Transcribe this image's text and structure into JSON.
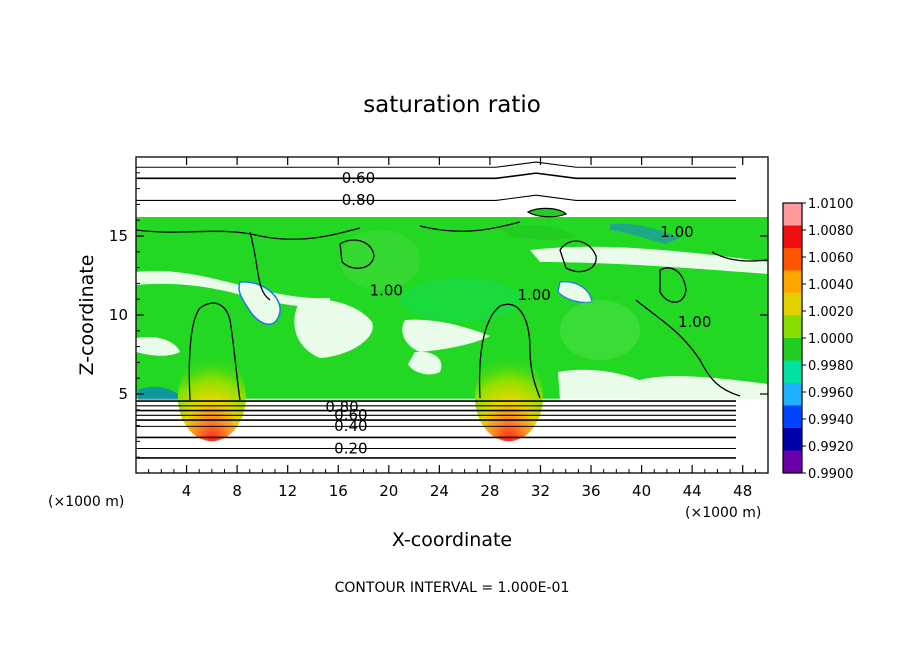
{
  "chart_data": {
    "type": "heatmap",
    "title": "saturation ratio",
    "xlabel": "X-coordinate",
    "ylabel": "Z-coordinate",
    "x_unit": "(×1000 m)",
    "z_unit": "(×1000 m)",
    "xlim": [
      0,
      50
    ],
    "ylim": [
      0,
      20
    ],
    "x_ticks": [
      4,
      8,
      12,
      16,
      20,
      24,
      28,
      32,
      36,
      40,
      44,
      48
    ],
    "y_ticks": [
      5,
      10,
      15
    ],
    "colorbar": {
      "ticks": [
        "1.0100",
        "1.0080",
        "1.0060",
        "1.0040",
        "1.0020",
        "1.0000",
        "0.9980",
        "0.9960",
        "0.9940",
        "0.9920",
        "0.9900"
      ],
      "colors": [
        "#ff9a9a",
        "#ee1010",
        "#ff5500",
        "#ffa500",
        "#e0d000",
        "#88dd00",
        "#22cc22",
        "#00e0a0",
        "#20b0ff",
        "#0044ff",
        "#0000aa",
        "#6a00a8"
      ]
    },
    "field_region": {
      "x_range": [
        0,
        50
      ],
      "z_range": [
        4.7,
        16.2
      ],
      "background_value": "1.0000",
      "background_color": "#22d822",
      "warm_spots": [
        {
          "x": 6.0,
          "z": 4.8,
          "color_peak": "#ee1010"
        },
        {
          "x": 29.5,
          "z": 4.8,
          "color_peak": "#ee1010"
        }
      ]
    },
    "contour_labels": [
      {
        "text": "0.60",
        "x": 17.6,
        "z": 18.6
      },
      {
        "text": "0.80",
        "x": 17.6,
        "z": 17.2
      },
      {
        "text": "1.00",
        "x": 42.8,
        "z": 15.2
      },
      {
        "text": "1.00",
        "x": 19.8,
        "z": 11.5
      },
      {
        "text": "1.00",
        "x": 31.5,
        "z": 11.2
      },
      {
        "text": "1.00",
        "x": 44.2,
        "z": 9.5
      },
      {
        "text": "0.80",
        "x": 16.3,
        "z": 4.1
      },
      {
        "text": "0.60",
        "x": 17.0,
        "z": 3.6
      },
      {
        "text": "0.40",
        "x": 17.0,
        "z": 2.9
      },
      {
        "text": "0.20",
        "x": 17.0,
        "z": 1.5
      }
    ],
    "horizontal_contours_z": [
      0.9,
      1.5,
      2.2,
      2.9,
      3.3,
      3.6,
      3.9,
      4.2,
      4.5,
      17.2,
      18.6,
      19.3
    ],
    "footer": "CONTOUR INTERVAL = 1.000E-01"
  }
}
